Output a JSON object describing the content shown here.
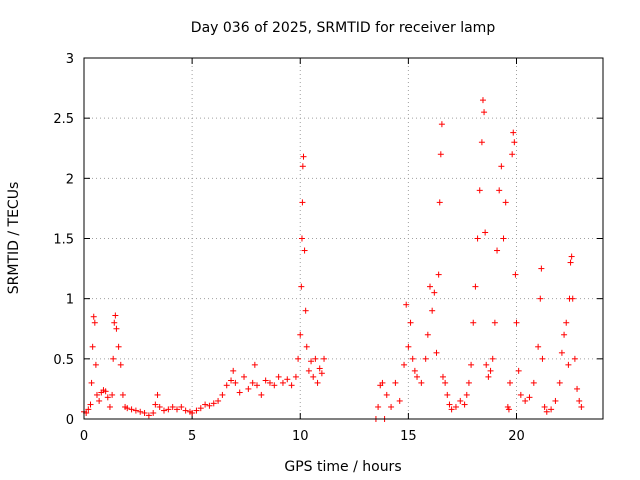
{
  "chart_data": {
    "type": "scatter",
    "title": "Day 036 of 2025, SRMTID for receiver lamp",
    "xlabel": "GPS time / hours",
    "ylabel": "SRMTID / TECUs",
    "xlim": [
      0,
      24
    ],
    "ylim": [
      0,
      3
    ],
    "x_ticks": [
      0,
      5,
      10,
      15,
      20
    ],
    "y_ticks": [
      0,
      0.5,
      1,
      1.5,
      2,
      2.5,
      3
    ],
    "x_tick_labels": [
      "0",
      "5",
      "10",
      "15",
      "20"
    ],
    "y_tick_labels": [
      "0",
      "0.5",
      "1",
      "1.5",
      "2",
      "2.5",
      "3"
    ],
    "grid": true,
    "marker": "+",
    "series": [
      {
        "name": "SRMTID",
        "color": "#ff0000",
        "points": [
          [
            0.0,
            0.06
          ],
          [
            0.1,
            0.05
          ],
          [
            0.2,
            0.08
          ],
          [
            0.3,
            0.12
          ],
          [
            0.35,
            0.3
          ],
          [
            0.4,
            0.6
          ],
          [
            0.45,
            0.85
          ],
          [
            0.5,
            0.8
          ],
          [
            0.55,
            0.45
          ],
          [
            0.6,
            0.2
          ],
          [
            0.7,
            0.15
          ],
          [
            0.8,
            0.22
          ],
          [
            0.9,
            0.24
          ],
          [
            1.0,
            0.23
          ],
          [
            1.1,
            0.18
          ],
          [
            1.2,
            0.1
          ],
          [
            1.3,
            0.2
          ],
          [
            1.35,
            0.5
          ],
          [
            1.4,
            0.8
          ],
          [
            1.45,
            0.86
          ],
          [
            1.5,
            0.75
          ],
          [
            1.6,
            0.6
          ],
          [
            1.7,
            0.45
          ],
          [
            1.8,
            0.2
          ],
          [
            1.9,
            0.1
          ],
          [
            2.0,
            0.09
          ],
          [
            2.2,
            0.08
          ],
          [
            2.4,
            0.07
          ],
          [
            2.6,
            0.06
          ],
          [
            2.8,
            0.05
          ],
          [
            3.0,
            0.03
          ],
          [
            3.2,
            0.05
          ],
          [
            3.3,
            0.12
          ],
          [
            3.4,
            0.2
          ],
          [
            3.5,
            0.1
          ],
          [
            3.7,
            0.07
          ],
          [
            3.9,
            0.08
          ],
          [
            4.1,
            0.1
          ],
          [
            4.3,
            0.08
          ],
          [
            4.5,
            0.1
          ],
          [
            4.7,
            0.07
          ],
          [
            4.9,
            0.06
          ],
          [
            5.0,
            0.05
          ],
          [
            5.2,
            0.07
          ],
          [
            5.4,
            0.09
          ],
          [
            5.6,
            0.12
          ],
          [
            5.8,
            0.11
          ],
          [
            6.0,
            0.13
          ],
          [
            6.2,
            0.15
          ],
          [
            6.4,
            0.2
          ],
          [
            6.6,
            0.28
          ],
          [
            6.8,
            0.32
          ],
          [
            6.9,
            0.4
          ],
          [
            7.0,
            0.3
          ],
          [
            7.2,
            0.22
          ],
          [
            7.4,
            0.35
          ],
          [
            7.6,
            0.25
          ],
          [
            7.8,
            0.3
          ],
          [
            7.9,
            0.45
          ],
          [
            8.0,
            0.28
          ],
          [
            8.2,
            0.2
          ],
          [
            8.4,
            0.32
          ],
          [
            8.6,
            0.3
          ],
          [
            8.8,
            0.28
          ],
          [
            9.0,
            0.35
          ],
          [
            9.2,
            0.3
          ],
          [
            9.4,
            0.33
          ],
          [
            9.6,
            0.28
          ],
          [
            9.8,
            0.35
          ],
          [
            9.9,
            0.5
          ],
          [
            10.0,
            0.7
          ],
          [
            10.05,
            1.1
          ],
          [
            10.08,
            1.5
          ],
          [
            10.1,
            1.8
          ],
          [
            10.12,
            2.1
          ],
          [
            10.15,
            2.18
          ],
          [
            10.2,
            1.4
          ],
          [
            10.25,
            0.9
          ],
          [
            10.3,
            0.6
          ],
          [
            10.4,
            0.4
          ],
          [
            10.5,
            0.48
          ],
          [
            10.6,
            0.35
          ],
          [
            10.7,
            0.5
          ],
          [
            10.8,
            0.3
          ],
          [
            10.9,
            0.42
          ],
          [
            11.0,
            0.38
          ],
          [
            11.1,
            0.5
          ],
          [
            13.5,
            0.0
          ],
          [
            13.6,
            0.1
          ],
          [
            13.7,
            0.28
          ],
          [
            13.8,
            0.3
          ],
          [
            13.9,
            0.0
          ],
          [
            14.0,
            0.2
          ],
          [
            14.2,
            0.1
          ],
          [
            14.4,
            0.3
          ],
          [
            14.6,
            0.15
          ],
          [
            14.8,
            0.45
          ],
          [
            14.9,
            0.95
          ],
          [
            15.0,
            0.6
          ],
          [
            15.1,
            0.8
          ],
          [
            15.2,
            0.5
          ],
          [
            15.3,
            0.4
          ],
          [
            15.4,
            0.35
          ],
          [
            15.6,
            0.3
          ],
          [
            15.8,
            0.5
          ],
          [
            15.9,
            0.7
          ],
          [
            16.0,
            1.1
          ],
          [
            16.1,
            0.9
          ],
          [
            16.2,
            1.05
          ],
          [
            16.3,
            0.55
          ],
          [
            16.4,
            1.2
          ],
          [
            16.45,
            1.8
          ],
          [
            16.5,
            2.2
          ],
          [
            16.55,
            2.45
          ],
          [
            16.6,
            0.35
          ],
          [
            16.7,
            0.3
          ],
          [
            16.8,
            0.2
          ],
          [
            16.9,
            0.12
          ],
          [
            17.0,
            0.08
          ],
          [
            17.2,
            0.1
          ],
          [
            17.4,
            0.15
          ],
          [
            17.6,
            0.12
          ],
          [
            17.7,
            0.2
          ],
          [
            17.8,
            0.3
          ],
          [
            17.9,
            0.45
          ],
          [
            18.0,
            0.8
          ],
          [
            18.1,
            1.1
          ],
          [
            18.2,
            1.5
          ],
          [
            18.3,
            1.9
          ],
          [
            18.4,
            2.3
          ],
          [
            18.45,
            2.65
          ],
          [
            18.5,
            2.55
          ],
          [
            18.55,
            1.55
          ],
          [
            18.6,
            0.45
          ],
          [
            18.7,
            0.35
          ],
          [
            18.8,
            0.4
          ],
          [
            18.9,
            0.5
          ],
          [
            19.0,
            0.8
          ],
          [
            19.1,
            1.4
          ],
          [
            19.2,
            1.9
          ],
          [
            19.3,
            2.1
          ],
          [
            19.4,
            1.5
          ],
          [
            19.5,
            1.8
          ],
          [
            19.6,
            0.1
          ],
          [
            19.65,
            0.08
          ],
          [
            19.7,
            0.3
          ],
          [
            19.8,
            2.2
          ],
          [
            19.85,
            2.38
          ],
          [
            19.9,
            2.3
          ],
          [
            19.95,
            1.2
          ],
          [
            20.0,
            0.8
          ],
          [
            20.1,
            0.4
          ],
          [
            20.2,
            0.2
          ],
          [
            20.4,
            0.15
          ],
          [
            20.6,
            0.18
          ],
          [
            20.8,
            0.3
          ],
          [
            21.0,
            0.6
          ],
          [
            21.1,
            1.0
          ],
          [
            21.15,
            1.25
          ],
          [
            21.2,
            0.5
          ],
          [
            21.3,
            0.1
          ],
          [
            21.4,
            0.06
          ],
          [
            21.6,
            0.08
          ],
          [
            21.8,
            0.15
          ],
          [
            22.0,
            0.3
          ],
          [
            22.1,
            0.55
          ],
          [
            22.2,
            0.7
          ],
          [
            22.3,
            0.8
          ],
          [
            22.4,
            0.45
          ],
          [
            22.45,
            1.0
          ],
          [
            22.5,
            1.3
          ],
          [
            22.55,
            1.35
          ],
          [
            22.6,
            1.0
          ],
          [
            22.7,
            0.5
          ],
          [
            22.8,
            0.25
          ],
          [
            22.9,
            0.15
          ],
          [
            23.0,
            0.1
          ]
        ]
      }
    ]
  }
}
